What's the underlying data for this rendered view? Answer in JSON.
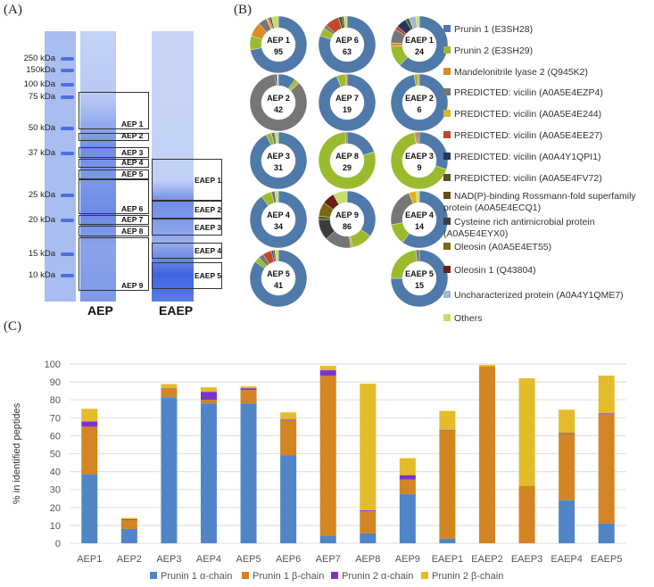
{
  "panels": {
    "a": "(A)",
    "b": "(B)",
    "c": "(C)"
  },
  "gel": {
    "markers": [
      "250 kDa",
      "150kDa",
      "100 kDa",
      "75 kDa",
      "50 kDa",
      "37 kDa",
      "25 kDa",
      "20 kDa",
      "15 kDa",
      "10 kDa"
    ],
    "lanes": [
      "AEP",
      "EAEP"
    ],
    "aep_bands": [
      "AEP 1",
      "AEP  2",
      "AEP 3",
      "AEP 4",
      "AEP 5",
      "AEP 6",
      "AEP 7",
      "AEP 8",
      "AEP 9"
    ],
    "eaep_bands": [
      "EAEP 1",
      "EAEP 2",
      "EAEP 3",
      "EAEP 4",
      "EAEP 5"
    ]
  },
  "legend_b": [
    {
      "label": "Prunin 1 (E3SH28)",
      "color": "#4f79a8"
    },
    {
      "label": "Prunin 2 (E3SH29)",
      "color": "#9bbb2e"
    },
    {
      "label": "Mandelonitrile lyase 2 (Q945K2)",
      "color": "#d98b24"
    },
    {
      "label": "PREDICTED: vicilin (A0A5E4EZP4)",
      "color": "#767676"
    },
    {
      "label": "PREDICTED: vicilin (A0A5E4E244)",
      "color": "#e0b31f"
    },
    {
      "label": "PREDICTED: vicilin (A0A5E4EE27)",
      "color": "#c0482a"
    },
    {
      "label": "PREDICTED: vicilin (A0A4Y1QPI1)",
      "color": "#24375a"
    },
    {
      "label": "PREDICTED: vicilin (A0A5E4FV72)",
      "color": "#4a5d1c"
    },
    {
      "label": "NAD(P)-binding Rossmann-fold superfamily protein (A0A5E4ECQ1)",
      "color": "#6b4a1a"
    },
    {
      "label": "Cysteine rich antimicrobial protein (A0A5E4EYX0)",
      "color": "#3c3c3c"
    },
    {
      "label": "Oleosin (A0A5E4ET55)",
      "color": "#7a6712"
    },
    {
      "label": "Oleosin 1 (Q43804)",
      "color": "#6a1f14"
    },
    {
      "label": "Uncharacterized protein (A0A4Y1QME7)",
      "color": "#9fb8d0"
    },
    {
      "label": "Others",
      "color": "#c7dc6e"
    }
  ],
  "donuts": [
    {
      "name": "AEP 1",
      "count": "95",
      "segments": [
        [
          0,
          0.72
        ],
        [
          1,
          0.08
        ],
        [
          2,
          0.08
        ],
        [
          3,
          0.05
        ],
        [
          4,
          0.01
        ],
        [
          5,
          0.01
        ],
        [
          6,
          0.01
        ],
        [
          13,
          0.04
        ]
      ]
    },
    {
      "name": "AEP 2",
      "count": "42",
      "segments": [
        [
          0,
          0.1
        ],
        [
          1,
          0.02
        ],
        [
          2,
          0.01
        ],
        [
          3,
          0.85
        ],
        [
          6,
          0.01
        ],
        [
          13,
          0.01
        ]
      ]
    },
    {
      "name": "AEP 3",
      "count": "31",
      "segments": [
        [
          0,
          0.93
        ],
        [
          1,
          0.03
        ],
        [
          3,
          0.02
        ],
        [
          13,
          0.02
        ]
      ]
    },
    {
      "name": "AEP 4",
      "count": "34",
      "segments": [
        [
          0,
          0.9
        ],
        [
          1,
          0.06
        ],
        [
          3,
          0.02
        ],
        [
          13,
          0.02
        ]
      ]
    },
    {
      "name": "AEP 5",
      "count": "41",
      "segments": [
        [
          0,
          0.85
        ],
        [
          1,
          0.03
        ],
        [
          3,
          0.03
        ],
        [
          5,
          0.05
        ],
        [
          6,
          0.01
        ],
        [
          7,
          0.01
        ],
        [
          13,
          0.02
        ]
      ]
    },
    {
      "name": "AEP 6",
      "count": "63",
      "segments": [
        [
          0,
          0.8
        ],
        [
          1,
          0.05
        ],
        [
          3,
          0.02
        ],
        [
          5,
          0.08
        ],
        [
          7,
          0.02
        ],
        [
          6,
          0.01
        ],
        [
          13,
          0.02
        ]
      ]
    },
    {
      "name": "AEP 7",
      "count": "19",
      "segments": [
        [
          0,
          0.94
        ],
        [
          1,
          0.05
        ],
        [
          2,
          0.01
        ]
      ]
    },
    {
      "name": "AEP 8",
      "count": "29",
      "segments": [
        [
          0,
          0.2
        ],
        [
          1,
          0.79
        ],
        [
          3,
          0.01
        ]
      ]
    },
    {
      "name": "AEP 9",
      "count": "86",
      "segments": [
        [
          0,
          0.35
        ],
        [
          1,
          0.12
        ],
        [
          2,
          0.01
        ],
        [
          3,
          0.15
        ],
        [
          9,
          0.12
        ],
        [
          7,
          0.02
        ],
        [
          10,
          0.08
        ],
        [
          11,
          0.07
        ],
        [
          13,
          0.08
        ]
      ]
    },
    {
      "name": "EAEP 1",
      "count": "24",
      "segments": [
        [
          0,
          0.62
        ],
        [
          1,
          0.12
        ],
        [
          2,
          0.02
        ],
        [
          3,
          0.08
        ],
        [
          5,
          0.02
        ],
        [
          6,
          0.06
        ],
        [
          7,
          0.02
        ],
        [
          12,
          0.04
        ],
        [
          13,
          0.02
        ]
      ]
    },
    {
      "name": "EAEP 2",
      "count": "6",
      "segments": [
        [
          0,
          0.97
        ],
        [
          1,
          0.02
        ],
        [
          2,
          0.01
        ]
      ]
    },
    {
      "name": "EAEP 3",
      "count": "9",
      "segments": [
        [
          0,
          0.3
        ],
        [
          1,
          0.67
        ],
        [
          2,
          0.01
        ],
        [
          5,
          0.01
        ],
        [
          3,
          0.01
        ]
      ]
    },
    {
      "name": "EAEP 4",
      "count": "14",
      "segments": [
        [
          0,
          0.6
        ],
        [
          1,
          0.12
        ],
        [
          3,
          0.22
        ],
        [
          4,
          0.04
        ],
        [
          13,
          0.02
        ]
      ]
    },
    {
      "name": "EAEP 5",
      "count": "15",
      "segments": [
        [
          0,
          0.75
        ],
        [
          1,
          0.23
        ],
        [
          3,
          0.02
        ]
      ]
    }
  ],
  "chart_data": {
    "type": "bar",
    "stacked": true,
    "title": "",
    "xlabel": "",
    "ylabel": "% in identified peptides",
    "ylim": [
      0,
      100
    ],
    "yticks": [
      "0",
      "10",
      "20",
      "30",
      "40",
      "50",
      "60",
      "70",
      "80",
      "90",
      "100"
    ],
    "grid": true,
    "legend_position": "bottom",
    "categories": [
      "AEP1",
      "AEP2",
      "AEP3",
      "AEP4",
      "AEP5",
      "AEP6",
      "AEP7",
      "AEP8",
      "AEP9",
      "EAEP1",
      "EAEP2",
      "EAEP3",
      "EAEP4",
      "EAEP5"
    ],
    "series": [
      {
        "name": "Prunin 1 α-chain",
        "color": "#5185c7",
        "values": [
          38.5,
          8,
          81.5,
          78,
          78,
          49,
          4,
          5.5,
          27.5,
          2.5,
          0,
          0,
          24,
          11
        ]
      },
      {
        "name": "Prunin 1 β-chain",
        "color": "#d38423",
        "values": [
          26.5,
          5,
          4.5,
          2,
          7.5,
          19.5,
          89.5,
          12.5,
          8,
          60.5,
          98.5,
          32,
          37,
          61
        ]
      },
      {
        "name": "Prunin 2 α-chain",
        "color": "#7a35c8",
        "values": [
          3,
          0.5,
          0.3,
          4.5,
          1,
          0.5,
          3,
          0.5,
          2.5,
          0.3,
          0,
          0,
          0.5,
          0.5
        ]
      },
      {
        "name": "Prunin 2 β-chain",
        "color": "#e4bb2a",
        "values": [
          7,
          0.7,
          2.5,
          2.5,
          1,
          4,
          2.5,
          70.5,
          9.5,
          10.5,
          1,
          60,
          13,
          21
        ]
      }
    ]
  }
}
